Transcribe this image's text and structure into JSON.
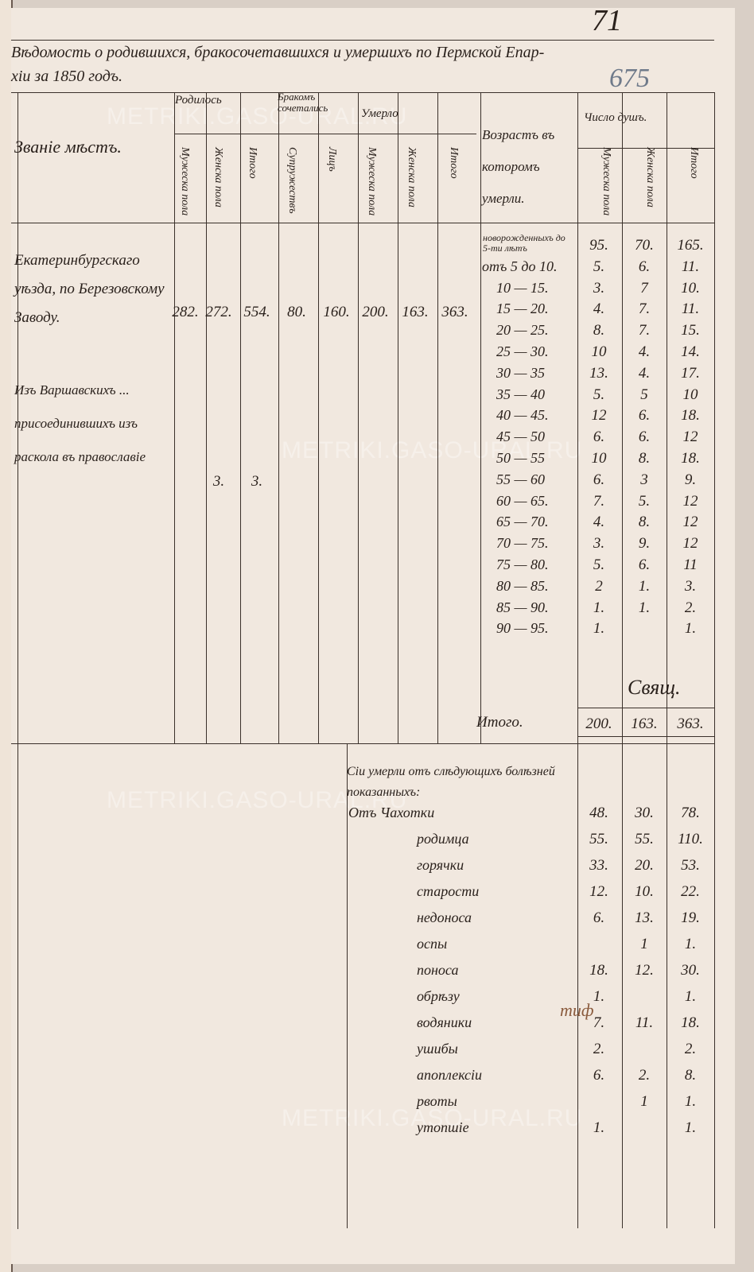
{
  "title": "Вѣдомость о родившихся, бракосочетавшихся и умершихъ по Пермской Епар-хіи за 1850 годъ.",
  "title_line1": "Вѣдомость о родившихся, бракосочетавшихся и умершихъ по Пермской Епар-",
  "title_line2": "хіи за 1850 годъ.",
  "folio": "71",
  "folio_archive": "675",
  "watermark": "METRIKI.GASO-URAL.RU",
  "headers": {
    "place": "Званіе мѣстъ.",
    "births": "Родилось",
    "marriages": "Бракомъ сочетались",
    "deaths": "Умерло",
    "age": "Возрастъ въ которомъ умерли.",
    "souls": "Число душъ.",
    "male": "Мужеска пола",
    "female": "Женска пола",
    "total": "Итого",
    "couples": "Супружествъ",
    "persons": "Лицъ"
  },
  "rows": [
    {
      "place": "Екатеринбургскаго уѣзда, по Березовскому Заводу.",
      "births_m": "282.",
      "births_f": "272.",
      "births_total": "554.",
      "couples": "80.",
      "persons": "160.",
      "deaths_m": "200.",
      "deaths_f": "163.",
      "deaths_total": "363."
    },
    {
      "place": "Изъ Варшавскихъ ... присоединившихъ изъ раскола въ православіе",
      "births_m": "",
      "births_f": "3.",
      "births_total": "3."
    }
  ],
  "ages": [
    {
      "range": "новорожденныхъ до 5-ти лѣтъ",
      "m": "95.",
      "f": "70.",
      "t": "165."
    },
    {
      "range": "отъ 5 до 10.",
      "m": "5.",
      "f": "6.",
      "t": "11."
    },
    {
      "range": "10 — 15.",
      "m": "3.",
      "f": "7",
      "t": "10."
    },
    {
      "range": "15 — 20.",
      "m": "4.",
      "f": "7.",
      "t": "11."
    },
    {
      "range": "20 — 25.",
      "m": "8.",
      "f": "7.",
      "t": "15."
    },
    {
      "range": "25 — 30.",
      "m": "10",
      "f": "4.",
      "t": "14."
    },
    {
      "range": "30 — 35",
      "m": "13.",
      "f": "4.",
      "t": "17."
    },
    {
      "range": "35 — 40",
      "m": "5.",
      "f": "5",
      "t": "10"
    },
    {
      "range": "40 — 45.",
      "m": "12",
      "f": "6.",
      "t": "18."
    },
    {
      "range": "45 — 50",
      "m": "6.",
      "f": "6.",
      "t": "12"
    },
    {
      "range": "50 — 55",
      "m": "10",
      "f": "8.",
      "t": "18."
    },
    {
      "range": "55 — 60",
      "m": "6.",
      "f": "3",
      "t": "9."
    },
    {
      "range": "60 — 65.",
      "m": "7.",
      "f": "5.",
      "t": "12"
    },
    {
      "range": "65 — 70.",
      "m": "4.",
      "f": "8.",
      "t": "12"
    },
    {
      "range": "70 — 75.",
      "m": "3.",
      "f": "9.",
      "t": "12"
    },
    {
      "range": "75 — 80.",
      "m": "5.",
      "f": "6.",
      "t": "11"
    },
    {
      "range": "80 — 85.",
      "m": "2",
      "f": "1.",
      "t": "3."
    },
    {
      "range": "85 — 90.",
      "m": "1.",
      "f": "1.",
      "t": "2."
    },
    {
      "range": "90 — 95.",
      "m": "1.",
      "f": "",
      "t": "1."
    }
  ],
  "signature": "Свящ.",
  "total_label": "Итого.",
  "totals": {
    "m": "200.",
    "f": "163.",
    "t": "363."
  },
  "causes_intro": "Сіи умерли отъ слѣдующихъ болѣзней показанныхъ:",
  "causes": [
    {
      "name": "Отъ Чахотки",
      "m": "48.",
      "f": "30.",
      "t": "78."
    },
    {
      "name": "родимца",
      "m": "55.",
      "f": "55.",
      "t": "110."
    },
    {
      "name": "горячки",
      "m": "33.",
      "f": "20.",
      "t": "53."
    },
    {
      "name": "старости",
      "m": "12.",
      "f": "10.",
      "t": "22."
    },
    {
      "name": "недоноса",
      "m": "6.",
      "f": "13.",
      "t": "19."
    },
    {
      "name": "оспы",
      "m": "",
      "f": "1",
      "t": "1."
    },
    {
      "name": "поноса",
      "m": "18.",
      "f": "12.",
      "t": "30."
    },
    {
      "name": "обрѣзу",
      "m": "1.",
      "f": "",
      "t": "1."
    },
    {
      "name": "водяники",
      "m": "7.",
      "f": "11.",
      "t": "18."
    },
    {
      "name": "ушибы",
      "m": "2.",
      "f": "",
      "t": "2."
    },
    {
      "name": "апоплексіи",
      "m": "6.",
      "f": "2.",
      "t": "8."
    },
    {
      "name": "рвоты",
      "m": "",
      "f": "1",
      "t": "1."
    },
    {
      "name": "утопшіе",
      "m": "1.",
      "f": "",
      "t": "1."
    }
  ],
  "margin_note": "тиф"
}
